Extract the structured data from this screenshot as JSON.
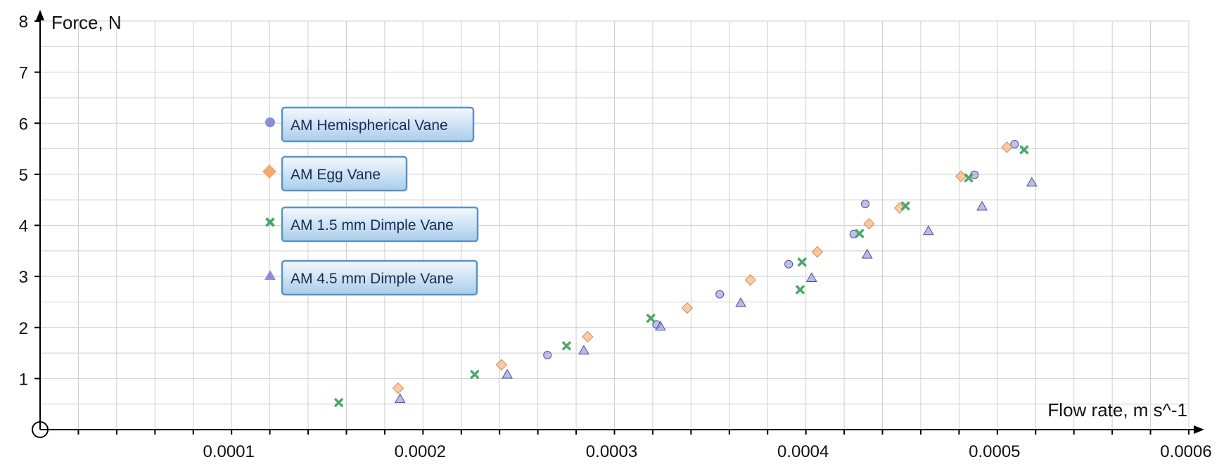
{
  "chart_data": {
    "type": "scatter",
    "title": "",
    "xlabel": "Flow rate, m s^-1",
    "ylabel": "Force, N",
    "xlim": [
      0,
      0.0006
    ],
    "ylim": [
      0,
      8
    ],
    "x_ticks": [
      "0.0001",
      "0.0002",
      "0.0003",
      "0.0004",
      "0.0005",
      "0.0006"
    ],
    "y_ticks": [
      "1",
      "2",
      "3",
      "4",
      "5",
      "6",
      "7",
      "8"
    ],
    "grid": true,
    "legend_placement": "left",
    "series": [
      {
        "name": "AM Hemispherical Vane",
        "marker": "circle",
        "color": "#8a8fd6",
        "points": [
          [
            0.000265,
            1.46
          ],
          [
            0.000322,
            2.06
          ],
          [
            0.000355,
            2.65
          ],
          [
            0.000391,
            3.24
          ],
          [
            0.000425,
            3.83
          ],
          [
            0.000431,
            4.42
          ],
          [
            0.000488,
            4.99
          ],
          [
            0.000509,
            5.59
          ]
        ]
      },
      {
        "name": "AM Egg Vane",
        "marker": "diamond",
        "color": "#f4a870",
        "points": [
          [
            0.000187,
            0.81
          ],
          [
            0.000241,
            1.27
          ],
          [
            0.000286,
            1.82
          ],
          [
            0.000338,
            2.38
          ],
          [
            0.000371,
            2.93
          ],
          [
            0.000406,
            3.48
          ],
          [
            0.000433,
            4.03
          ],
          [
            0.000449,
            4.34
          ],
          [
            0.000481,
            4.96
          ],
          [
            0.000505,
            5.53
          ]
        ]
      },
      {
        "name": "AM 1.5 mm Dimple Vane",
        "marker": "x",
        "color": "#4aa86a",
        "points": [
          [
            0.000156,
            0.53
          ],
          [
            0.000227,
            1.08
          ],
          [
            0.000275,
            1.64
          ],
          [
            0.000319,
            2.18
          ],
          [
            0.000397,
            2.74
          ],
          [
            0.000398,
            3.28
          ],
          [
            0.000428,
            3.84
          ],
          [
            0.000452,
            4.38
          ],
          [
            0.000485,
            4.93
          ],
          [
            0.000514,
            5.48
          ]
        ]
      },
      {
        "name": "AM 4.5 mm Dimple Vane",
        "marker": "triangle",
        "color": "#8a8fd6",
        "points": [
          [
            0.000188,
            0.6
          ],
          [
            0.000244,
            1.08
          ],
          [
            0.000284,
            1.55
          ],
          [
            0.000324,
            2.02
          ],
          [
            0.000366,
            2.48
          ],
          [
            0.000403,
            2.97
          ],
          [
            0.000432,
            3.43
          ],
          [
            0.000464,
            3.89
          ],
          [
            0.000492,
            4.37
          ],
          [
            0.000518,
            4.84
          ]
        ]
      }
    ]
  },
  "colors": {
    "grid": "#cfcfcf",
    "axis": "#000000",
    "legend_border": "#5b93c4",
    "legend_fill_top": "#f4f9fd",
    "legend_fill_bottom": "#a9cdea",
    "legend_text": "#1a2a55"
  }
}
